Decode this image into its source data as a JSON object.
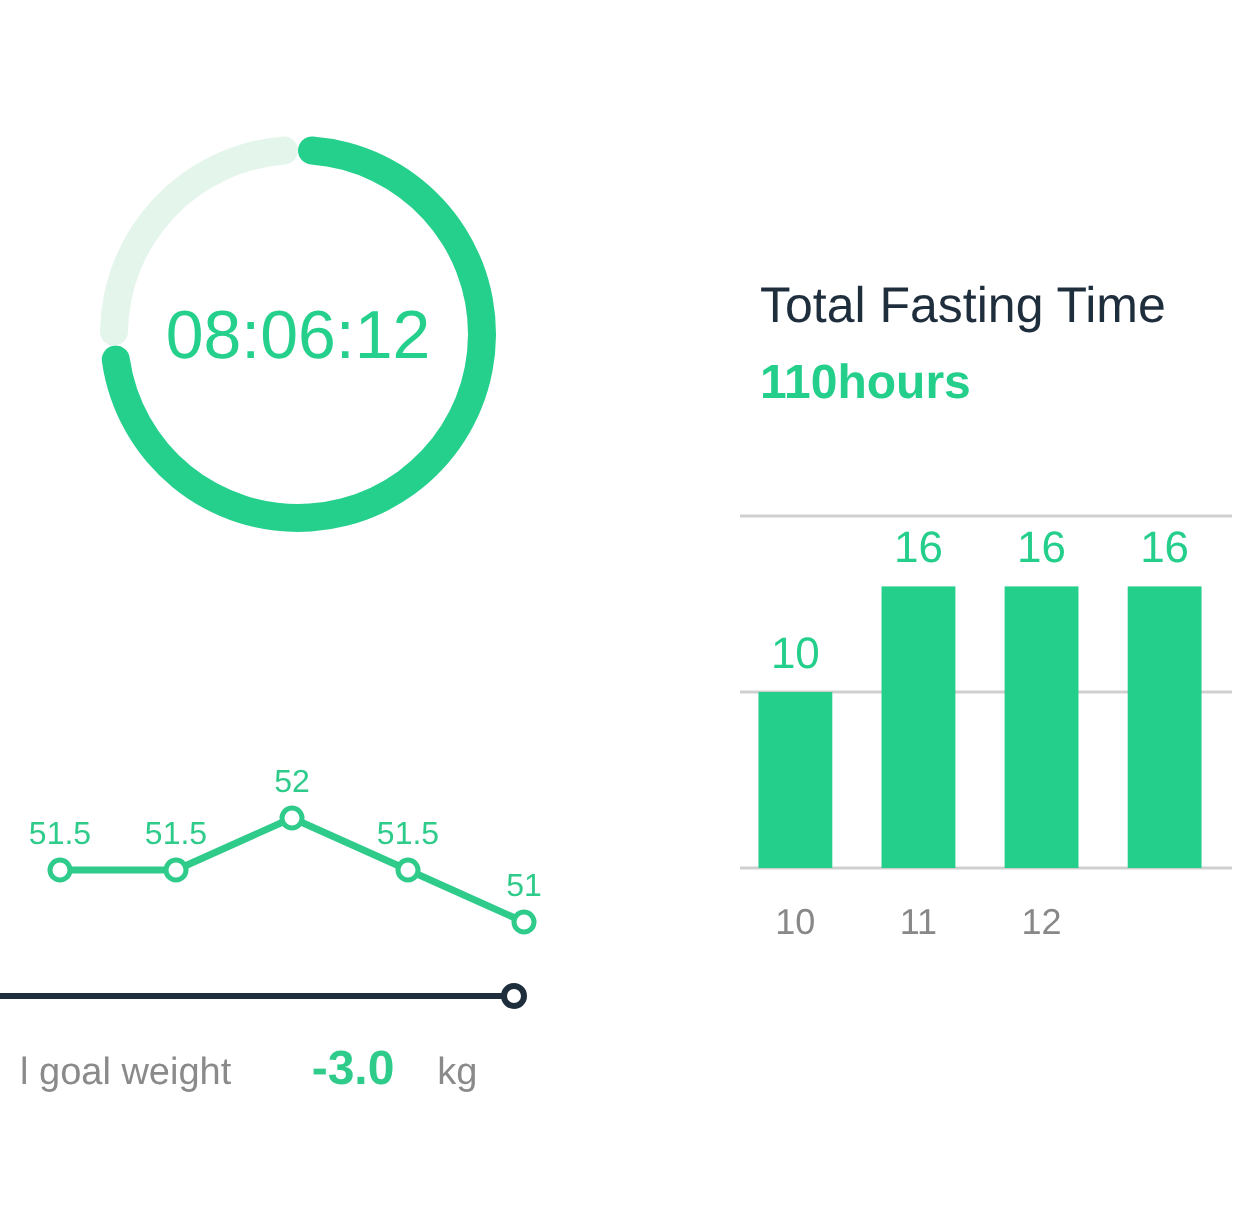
{
  "chart_data": [
    {
      "type": "donut",
      "categories": [
        null,
        null
      ],
      "values": [
        74,
        26
      ],
      "colors": [
        "#25cf8c",
        "#e4f5ec"
      ],
      "annotations": [
        "08:06:12"
      ]
    },
    {
      "type": "line",
      "categories": [
        null,
        null,
        null,
        null,
        null
      ],
      "values": [
        51.5,
        51.5,
        52,
        51.5,
        51
      ],
      "color": "#2ecb8a",
      "data_labels": true,
      "marker": "circle",
      "annotations": [
        "l goal weight",
        "-3.0",
        "kg"
      ]
    },
    {
      "type": "bar",
      "title": "Total Fasting Time",
      "subtitle": "110hours",
      "categories": [
        "10",
        "11",
        "12",
        null
      ],
      "values": [
        10,
        16,
        16,
        16
      ],
      "color": "#24ce8b",
      "ylim": [
        0,
        20
      ],
      "yticks": [
        {
          "value": 0,
          "label": null
        },
        {
          "value": 10,
          "label": null
        },
        {
          "value": 20,
          "label": null
        }
      ],
      "data_labels": true
    }
  ]
}
